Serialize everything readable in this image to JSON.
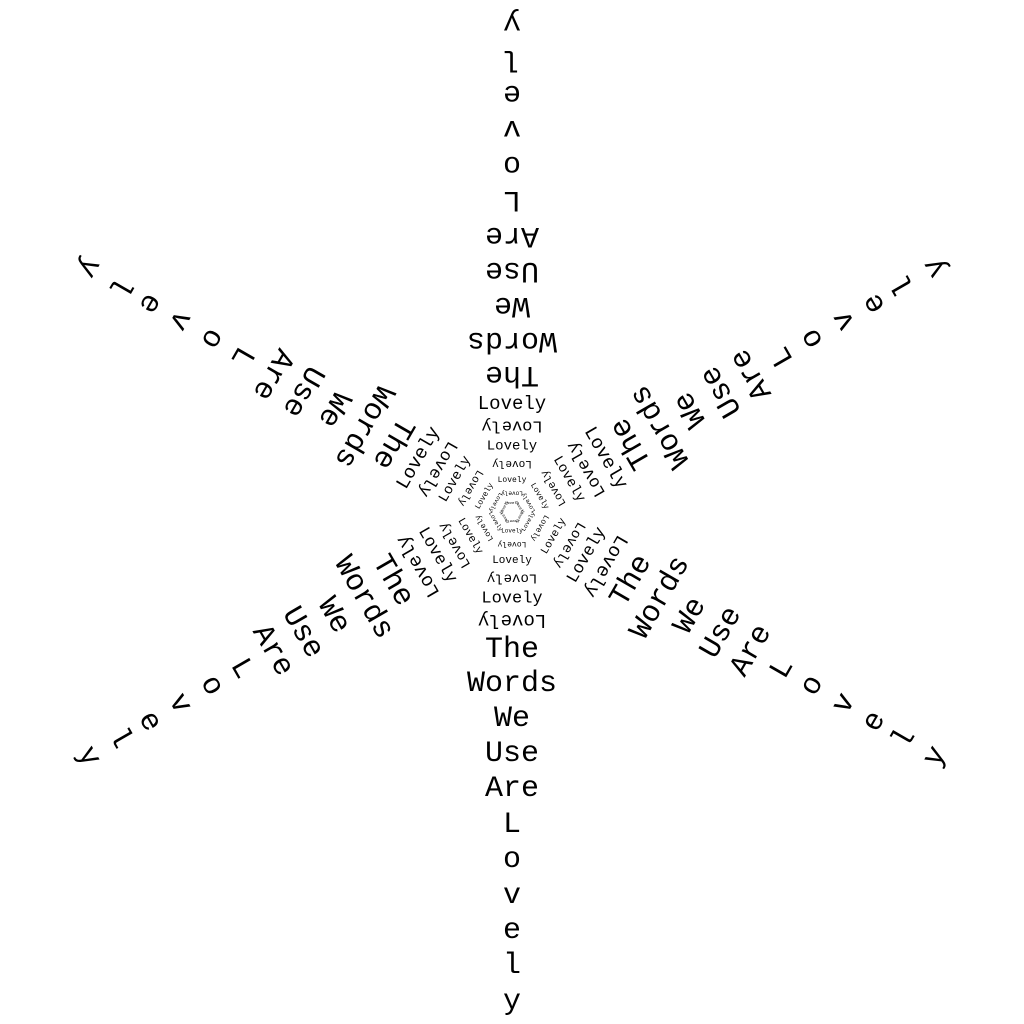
{
  "poem": {
    "lines": [
      "The",
      "Words",
      "We",
      "Use",
      "Are"
    ],
    "last_word": "Lovely",
    "letters": [
      "L",
      "o",
      "v",
      "e",
      "l",
      "y"
    ]
  },
  "center_word": "Lovely",
  "colors": {
    "background": "#ffffff",
    "ink": "#000000"
  }
}
